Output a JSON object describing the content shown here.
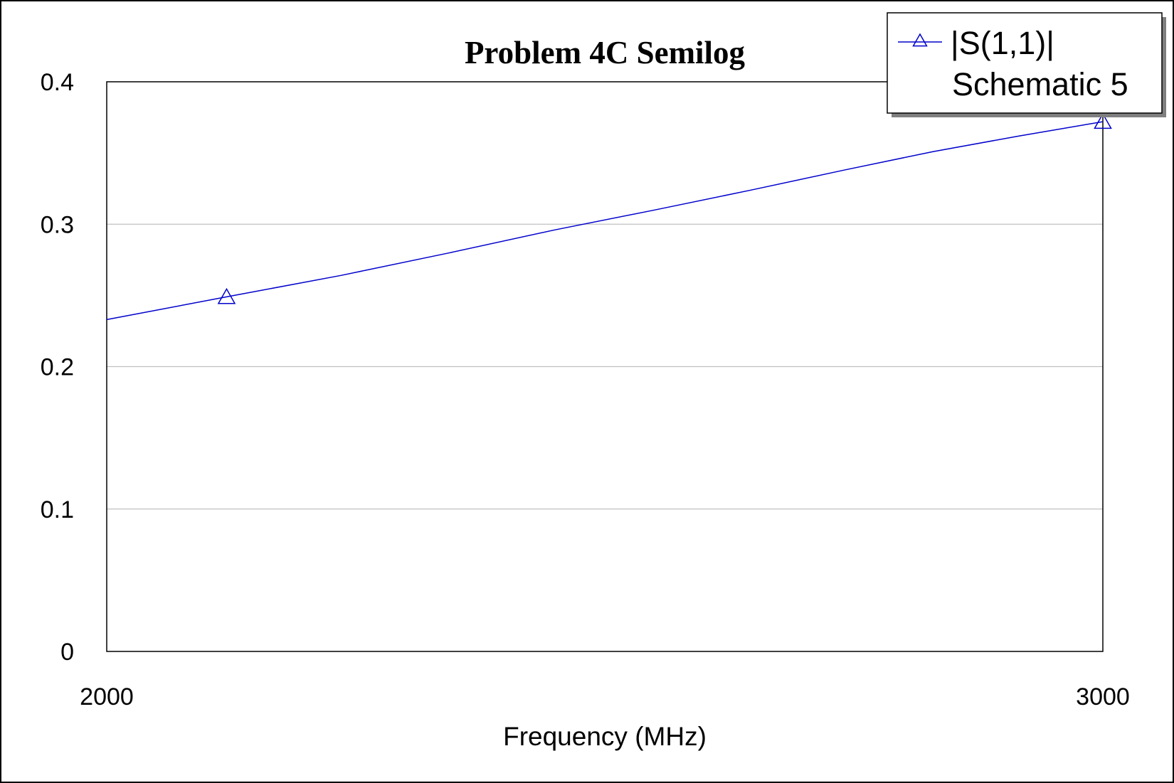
{
  "chart_data": {
    "type": "line",
    "title": "Problem 4C Semilog",
    "xlabel": "Frequency (MHz)",
    "ylabel": "",
    "xscale": "log",
    "xlim": [
      2000,
      3000
    ],
    "ylim": [
      0,
      0.4
    ],
    "x_ticks": [
      2000,
      3000
    ],
    "x_tick_labels": [
      "2000",
      "3000"
    ],
    "y_ticks": [
      0,
      0.1,
      0.2,
      0.3,
      0.4
    ],
    "y_tick_labels": [
      "0",
      "0.1",
      "0.2",
      "0.3",
      "0.4"
    ],
    "grid": "horizontal",
    "legend_position": "top-right",
    "legend": {
      "entries": [
        {
          "label_line1": "|S(1,1)|",
          "label_line2": "Schematic 5",
          "marker": "triangle",
          "color": "#0000cc"
        }
      ]
    },
    "series": [
      {
        "name": "|S(1,1)|",
        "color": "#0000cc",
        "marker": "triangle",
        "x": [
          2000,
          2100,
          2200,
          2300,
          2400,
          2500,
          2600,
          2700,
          2800,
          2900,
          3000
        ],
        "y": [
          0.233,
          0.249,
          0.264,
          0.28,
          0.296,
          0.31,
          0.324,
          0.338,
          0.351,
          0.362,
          0.372
        ],
        "marker_x": [
          2100,
          3000
        ],
        "marker_y": [
          0.249,
          0.372
        ]
      }
    ]
  }
}
